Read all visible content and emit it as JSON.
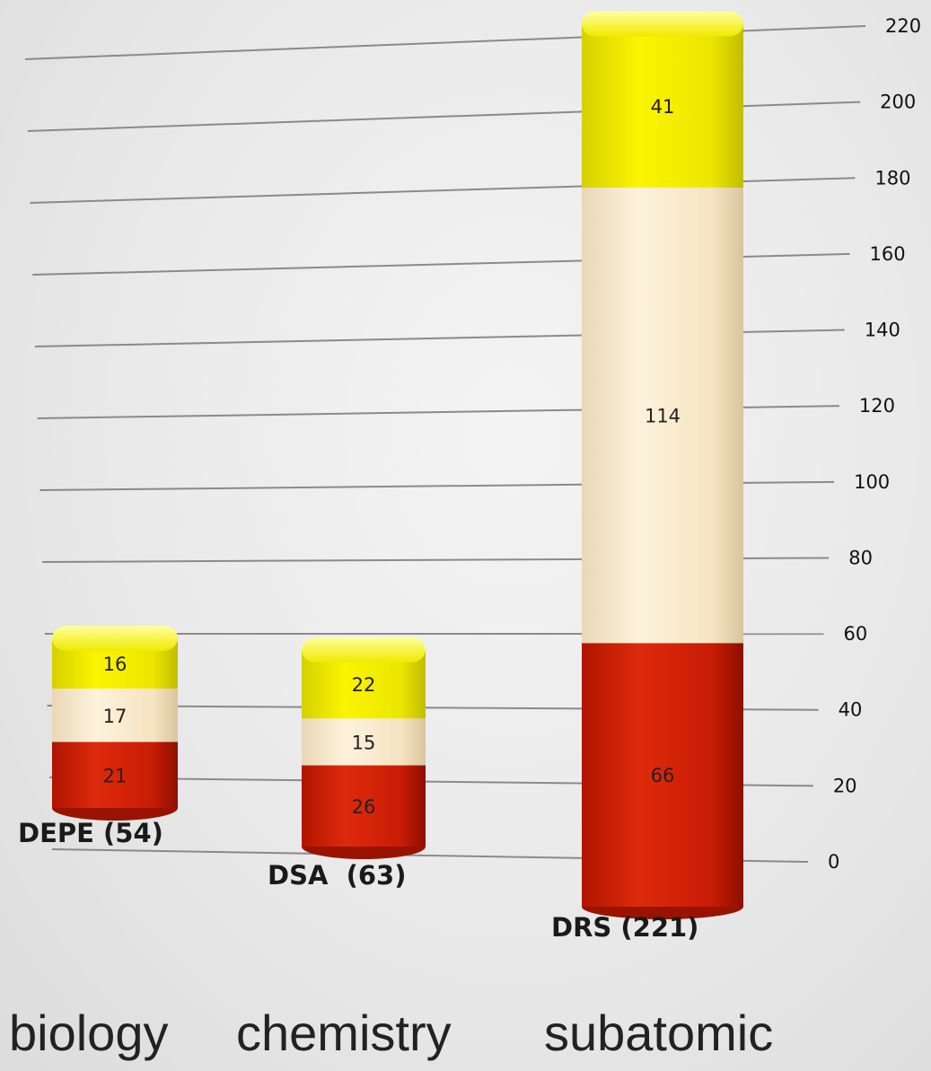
{
  "chart_data": {
    "type": "bar",
    "stacked": true,
    "categories": [
      "DEPE (54)",
      "DSA  (63)",
      "DRS (221)"
    ],
    "series": [
      {
        "values": [
          21,
          26,
          66
        ],
        "color": "#d8200a"
      },
      {
        "values": [
          17,
          15,
          114
        ],
        "color": "#f8e8c8"
      },
      {
        "values": [
          16,
          22,
          41
        ],
        "color": "#eee800"
      }
    ],
    "ylim": [
      0,
      220
    ],
    "yticks": [
      0,
      20,
      40,
      60,
      80,
      100,
      120,
      140,
      160,
      180,
      200,
      220
    ],
    "grid": true,
    "axis_side": "right"
  },
  "fields": [
    "biology",
    "chemistry",
    "subatomic"
  ]
}
